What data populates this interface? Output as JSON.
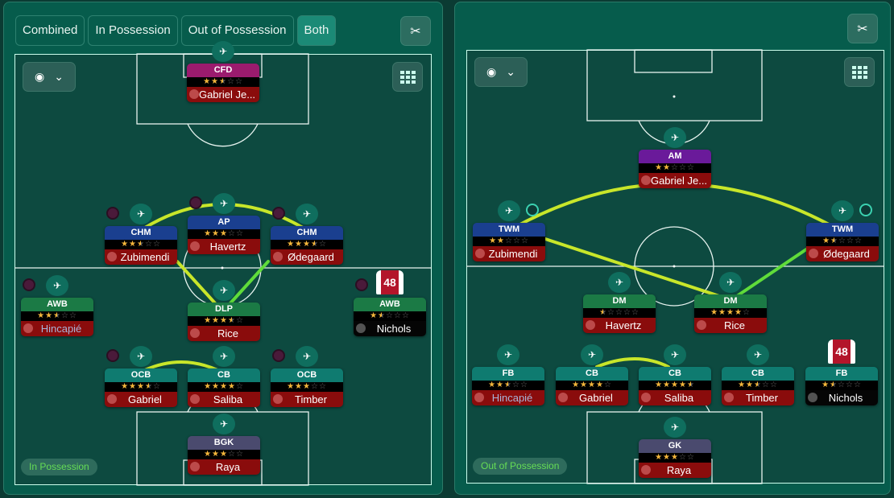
{
  "tabs": [
    {
      "label": "Combined"
    },
    {
      "label": "In Possession"
    },
    {
      "label": "Out of Possession"
    },
    {
      "label": "Both",
      "active": true
    }
  ],
  "icons": {
    "share": "tactics-share-icon",
    "eye": "eye-icon",
    "chevron": "chevron-down-icon",
    "grid": "grid-icon"
  },
  "colors": {
    "panel": "#065c4c",
    "pitch": "#0d4a40",
    "link_yellow": "#c8e62a",
    "link_green": "#5fdc3a",
    "name_bg": "#8a0c0c",
    "star": "#f4b63b"
  },
  "left": {
    "badge": "In Possession",
    "players": [
      {
        "role": "CFD",
        "rating": 2.5,
        "name": "Gabriel Je...",
        "color": "#9b1b6e"
      },
      {
        "role": "CHM",
        "rating": 2.5,
        "name": "Zubimendi",
        "color": "#1a3f8f"
      },
      {
        "role": "AP",
        "rating": 3,
        "name": "Havertz",
        "color": "#1a3f8f"
      },
      {
        "role": "CHM",
        "rating": 3.5,
        "name": "Ødegaard",
        "color": "#1a3f8f"
      },
      {
        "role": "AWB",
        "rating": 2.5,
        "name": "Hincapié",
        "color": "#1b7a45",
        "name_color": "#a9b4d8"
      },
      {
        "role": "DLP",
        "rating": 3.5,
        "name": "Rice",
        "color": "#1b7a45"
      },
      {
        "role": "AWB",
        "rating": 1.5,
        "name": "Nichols",
        "color": "#1b7a45",
        "dark": true,
        "shirt": "48"
      },
      {
        "role": "OCB",
        "rating": 3.5,
        "name": "Gabriel",
        "color": "#0f7b70"
      },
      {
        "role": "CB",
        "rating": 4,
        "name": "Saliba",
        "color": "#0f7b70"
      },
      {
        "role": "OCB",
        "rating": 3,
        "name": "Timber",
        "color": "#0f7b70"
      },
      {
        "role": "BGK",
        "rating": 3,
        "name": "Raya",
        "color": "#4a4a6e"
      }
    ]
  },
  "right": {
    "badge": "Out of Possession",
    "players": [
      {
        "role": "AM",
        "rating": 2,
        "name": "Gabriel Je...",
        "color": "#6a1a9a"
      },
      {
        "role": "TWM",
        "rating": 2,
        "name": "Zubimendi",
        "color": "#1a3f8f"
      },
      {
        "role": "TWM",
        "rating": 1.5,
        "name": "Ødegaard",
        "color": "#1a3f8f"
      },
      {
        "role": "DM",
        "rating": 0.5,
        "name": "Havertz",
        "color": "#1b7a45"
      },
      {
        "role": "DM",
        "rating": 4,
        "name": "Rice",
        "color": "#1b7a45"
      },
      {
        "role": "FB",
        "rating": 2.5,
        "name": "Hincapié",
        "color": "#0f7b70",
        "name_color": "#a9b4d8"
      },
      {
        "role": "CB",
        "rating": 4,
        "name": "Gabriel",
        "color": "#0f7b70"
      },
      {
        "role": "CB",
        "rating": 4.5,
        "name": "Saliba",
        "color": "#0f7b70"
      },
      {
        "role": "CB",
        "rating": 2.5,
        "name": "Timber",
        "color": "#0f7b70"
      },
      {
        "role": "FB",
        "rating": 1.5,
        "name": "Nichols",
        "color": "#0f7b70",
        "dark": true,
        "shirt": "48"
      },
      {
        "role": "GK",
        "rating": 3,
        "name": "Raya",
        "color": "#4a4a6e"
      }
    ]
  }
}
